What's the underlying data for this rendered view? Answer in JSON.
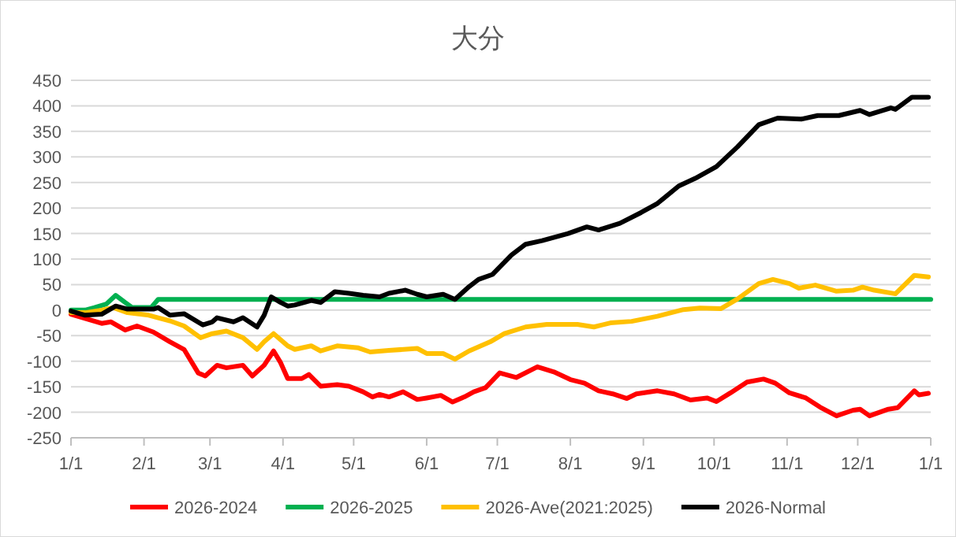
{
  "chart_data": {
    "type": "line",
    "title": "大分",
    "legend": "bottom",
    "grid": "y",
    "line_style": "solid",
    "marker": "none",
    "xlim": [
      "2026-01-01",
      "2027-01-01"
    ],
    "ylim": [
      -250,
      450
    ],
    "xticks": [
      {
        "value": "2026-01-01",
        "label": "1/1"
      },
      {
        "value": "2026-02-01",
        "label": "2/1"
      },
      {
        "value": "2026-03-01",
        "label": "3/1"
      },
      {
        "value": "2026-04-01",
        "label": "4/1"
      },
      {
        "value": "2026-05-01",
        "label": "5/1"
      },
      {
        "value": "2026-06-01",
        "label": "6/1"
      },
      {
        "value": "2026-07-01",
        "label": "7/1"
      },
      {
        "value": "2026-08-01",
        "label": "8/1"
      },
      {
        "value": "2026-09-01",
        "label": "9/1"
      },
      {
        "value": "2026-10-01",
        "label": "10/1"
      },
      {
        "value": "2026-11-01",
        "label": "11/1"
      },
      {
        "value": "2026-12-01",
        "label": "12/1"
      },
      {
        "value": "2027-01-01",
        "label": "1/1"
      }
    ],
    "yticks": [
      -250,
      -200,
      -150,
      -100,
      -50,
      0,
      50,
      100,
      150,
      200,
      250,
      300,
      350,
      400,
      450
    ],
    "series": [
      {
        "name": "2026-2024",
        "color": "#ff0000",
        "x": [
          "2026-01-01",
          "2026-01-14",
          "2026-01-18",
          "2026-01-24",
          "2026-01-29",
          "2026-02-05",
          "2026-02-12",
          "2026-02-18",
          "2026-02-24",
          "2026-02-27",
          "2026-03-04",
          "2026-03-08",
          "2026-03-15",
          "2026-03-19",
          "2026-03-24",
          "2026-03-28",
          "2026-03-31",
          "2026-04-03",
          "2026-04-09",
          "2026-04-12",
          "2026-04-17",
          "2026-04-24",
          "2026-04-29",
          "2026-05-05",
          "2026-05-09",
          "2026-05-12",
          "2026-05-16",
          "2026-05-22",
          "2026-05-28",
          "2026-06-01",
          "2026-06-07",
          "2026-06-12",
          "2026-06-17",
          "2026-06-21",
          "2026-06-26",
          "2026-07-02",
          "2026-07-09",
          "2026-07-18",
          "2026-07-25",
          "2026-08-01",
          "2026-08-07",
          "2026-08-13",
          "2026-08-19",
          "2026-08-25",
          "2026-08-29",
          "2026-09-07",
          "2026-09-14",
          "2026-09-21",
          "2026-09-28",
          "2026-10-02",
          "2026-10-08",
          "2026-10-15",
          "2026-10-22",
          "2026-10-27",
          "2026-11-02",
          "2026-11-09",
          "2026-11-15",
          "2026-11-22",
          "2026-11-29",
          "2026-12-02",
          "2026-12-06",
          "2026-12-14",
          "2026-12-18",
          "2026-12-25",
          "2026-12-27",
          "2026-12-31"
        ],
        "values": [
          -8,
          -26,
          -23,
          -39,
          -31,
          -43,
          -62,
          -77,
          -123,
          -129,
          -108,
          -113,
          -108,
          -129,
          -108,
          -80,
          -103,
          -134,
          -134,
          -126,
          -149,
          -146,
          -149,
          -160,
          -170,
          -165,
          -170,
          -160,
          -175,
          -172,
          -167,
          -180,
          -170,
          -160,
          -152,
          -123,
          -132,
          -111,
          -121,
          -136,
          -143,
          -158,
          -164,
          -173,
          -164,
          -158,
          -164,
          -176,
          -172,
          -179,
          -162,
          -141,
          -135,
          -143,
          -162,
          -172,
          -190,
          -207,
          -196,
          -194,
          -207,
          -194,
          -191,
          -158,
          -166,
          -163
        ]
      },
      {
        "name": "2026-2025",
        "color": "#00b050",
        "x": [
          "2026-01-01",
          "2026-01-07",
          "2026-01-11",
          "2026-01-16",
          "2026-01-20",
          "2026-01-24",
          "2026-01-27",
          "2026-02-04",
          "2026-02-07",
          "2027-01-01"
        ],
        "values": [
          0,
          0,
          5,
          12,
          29,
          15,
          5,
          5,
          21,
          21
        ]
      },
      {
        "name": "2026-Ave(2021:2025)",
        "color": "#ffc000",
        "x": [
          "2026-01-01",
          "2026-01-07",
          "2026-01-14",
          "2026-01-19",
          "2026-01-25",
          "2026-02-03",
          "2026-02-07",
          "2026-02-12",
          "2026-02-18",
          "2026-02-25",
          "2026-03-02",
          "2026-03-08",
          "2026-03-15",
          "2026-03-21",
          "2026-03-24",
          "2026-03-28",
          "2026-04-03",
          "2026-04-06",
          "2026-04-13",
          "2026-04-17",
          "2026-04-24",
          "2026-05-03",
          "2026-05-08",
          "2026-05-16",
          "2026-05-28",
          "2026-06-01",
          "2026-06-08",
          "2026-06-13",
          "2026-06-19",
          "2026-06-28",
          "2026-07-04",
          "2026-07-13",
          "2026-07-22",
          "2026-08-04",
          "2026-08-11",
          "2026-08-18",
          "2026-08-27",
          "2026-09-07",
          "2026-09-18",
          "2026-09-25",
          "2026-10-04",
          "2026-10-11",
          "2026-10-20",
          "2026-10-26",
          "2026-11-02",
          "2026-11-06",
          "2026-11-13",
          "2026-11-22",
          "2026-11-29",
          "2026-12-03",
          "2026-12-08",
          "2026-12-17",
          "2026-12-25",
          "2026-12-31"
        ],
        "values": [
          -5,
          -5,
          0,
          5,
          -5,
          -10,
          -15,
          -21,
          -31,
          -54,
          -46,
          -41,
          -54,
          -77,
          -62,
          -46,
          -70,
          -77,
          -70,
          -80,
          -70,
          -74,
          -82,
          -79,
          -75,
          -85,
          -85,
          -96,
          -80,
          -62,
          -46,
          -33,
          -28,
          -28,
          -33,
          -25,
          -22,
          -12,
          1,
          4,
          3,
          22,
          52,
          60,
          52,
          43,
          49,
          37,
          39,
          45,
          39,
          32,
          68,
          65
        ]
      },
      {
        "name": "2026-Normal",
        "color": "#000000",
        "x": [
          "2026-01-01",
          "2026-01-07",
          "2026-01-14",
          "2026-01-20",
          "2026-01-25",
          "2026-02-05",
          "2026-02-07",
          "2026-02-12",
          "2026-02-18",
          "2026-02-26",
          "2026-03-02",
          "2026-03-04",
          "2026-03-11",
          "2026-03-15",
          "2026-03-21",
          "2026-03-24",
          "2026-03-27",
          "2026-03-31",
          "2026-04-03",
          "2026-04-06",
          "2026-04-13",
          "2026-04-17",
          "2026-04-23",
          "2026-04-29",
          "2026-05-05",
          "2026-05-12",
          "2026-05-16",
          "2026-05-23",
          "2026-05-28",
          "2026-06-01",
          "2026-06-08",
          "2026-06-13",
          "2026-06-19",
          "2026-06-23",
          "2026-06-29",
          "2026-07-07",
          "2026-07-13",
          "2026-07-20",
          "2026-07-31",
          "2026-08-08",
          "2026-08-13",
          "2026-08-22",
          "2026-08-31",
          "2026-09-07",
          "2026-09-16",
          "2026-09-23",
          "2026-10-02",
          "2026-10-11",
          "2026-10-20",
          "2026-10-28",
          "2026-11-07",
          "2026-11-14",
          "2026-11-23",
          "2026-12-02",
          "2026-12-06",
          "2026-12-15",
          "2026-12-17",
          "2026-12-24",
          "2026-12-31"
        ],
        "values": [
          -2,
          -10,
          -8,
          8,
          2,
          2,
          5,
          -10,
          -7,
          -29,
          -23,
          -15,
          -23,
          -15,
          -33,
          -10,
          26,
          15,
          8,
          10,
          19,
          15,
          36,
          33,
          29,
          26,
          33,
          39,
          31,
          26,
          31,
          21,
          46,
          60,
          70,
          108,
          129,
          136,
          150,
          163,
          157,
          170,
          191,
          209,
          243,
          258,
          281,
          320,
          363,
          376,
          374,
          381,
          381,
          391,
          383,
          396,
          393,
          417,
          417
        ]
      }
    ]
  }
}
